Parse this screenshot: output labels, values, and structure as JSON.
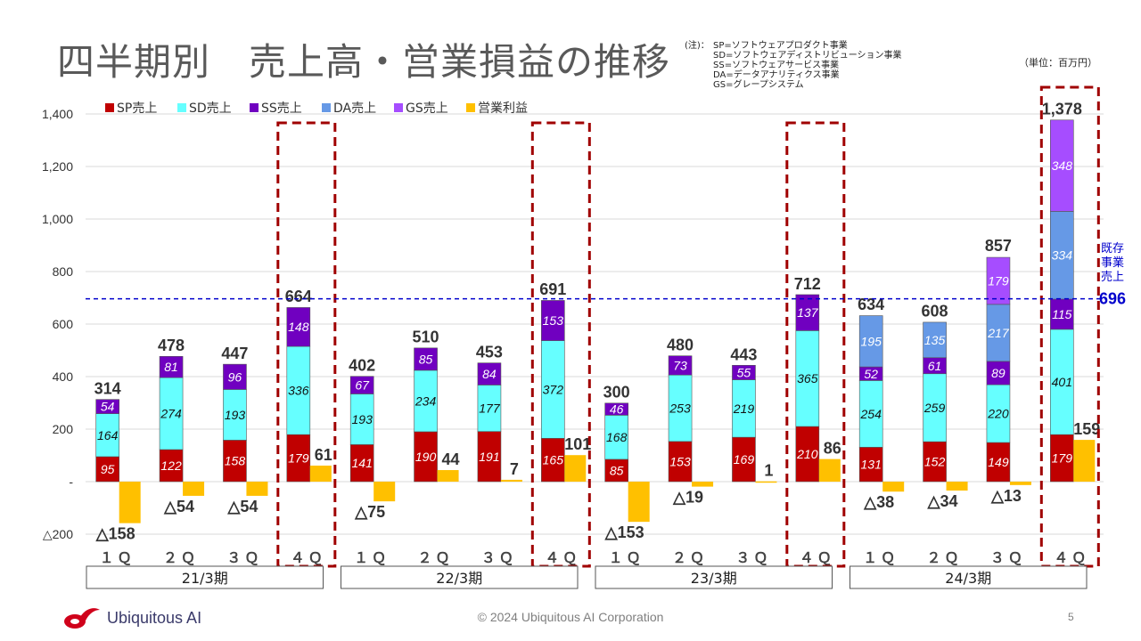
{
  "page": {
    "title": "四半期別　売上高・営業損益の推移",
    "notes_head": "(注)：",
    "notes": [
      "SP=ソフトウェアプロダクト事業",
      "SD=ソフトウェアディストリビューション事業",
      "SS=ソフトウェアサービス事業",
      "DA=データアナリティクス事業",
      "GS=グレープシステム"
    ],
    "unit": "（単位：百万円）",
    "company": "Ubiquitous AI",
    "copyright": "© 2024 Ubiquitous AI Corporation",
    "page_number": "5"
  },
  "chart_data": {
    "type": "bar",
    "stacked": true,
    "y_range": [
      -200,
      1400
    ],
    "y_ticks": [
      {
        "value": 1400,
        "label": "1,400"
      },
      {
        "value": 1200,
        "label": "1,200"
      },
      {
        "value": 1000,
        "label": "1,000"
      },
      {
        "value": 800,
        "label": "800"
      },
      {
        "value": 600,
        "label": "600"
      },
      {
        "value": 400,
        "label": "400"
      },
      {
        "value": 200,
        "label": "200"
      },
      {
        "value": 0,
        "label": "-"
      },
      {
        "value": -200,
        "label": "△200"
      }
    ],
    "grid": true,
    "legend_position": "top-left",
    "series": [
      {
        "key": "sp",
        "name": "SP売上",
        "color": "#c00000"
      },
      {
        "key": "sd",
        "name": "SD売上",
        "color": "#66ffff"
      },
      {
        "key": "ss",
        "name": "SS売上",
        "color": "#7000c0"
      },
      {
        "key": "da",
        "name": "DA売上",
        "color": "#6699e6"
      },
      {
        "key": "gs",
        "name": "GS売上",
        "color": "#a64dff"
      },
      {
        "key": "op",
        "name": "営業利益",
        "color": "#ffc000"
      }
    ],
    "fiscal_years": [
      "21/3期",
      "22/3期",
      "23/3期",
      "24/3期"
    ],
    "quarters": [
      {
        "label": "１Ｑ",
        "fy": 0,
        "sp": 95,
        "sd": 164,
        "ss": 54,
        "da": 0,
        "gs": 0,
        "total": 314,
        "total_label": "314",
        "op": -158,
        "op_label": "△158"
      },
      {
        "label": "２Ｑ",
        "fy": 0,
        "sp": 122,
        "sd": 274,
        "ss": 81,
        "da": 0,
        "gs": 0,
        "total": 478,
        "total_label": "478",
        "op": -54,
        "op_label": "△54"
      },
      {
        "label": "３Ｑ",
        "fy": 0,
        "sp": 158,
        "sd": 193,
        "ss": 96,
        "da": 0,
        "gs": 0,
        "total": 447,
        "total_label": "447",
        "op": -54,
        "op_label": "△54"
      },
      {
        "label": "４Ｑ",
        "fy": 0,
        "sp": 179,
        "sd": 336,
        "ss": 148,
        "da": 0,
        "gs": 0,
        "total": 664,
        "total_label": "664",
        "op": 61,
        "op_label": "61",
        "highlight": true
      },
      {
        "label": "１Ｑ",
        "fy": 1,
        "sp": 141,
        "sd": 193,
        "ss": 67,
        "da": 0,
        "gs": 0,
        "total": 402,
        "total_label": "402",
        "op": -75,
        "op_label": "△75"
      },
      {
        "label": "２Ｑ",
        "fy": 1,
        "sp": 190,
        "sd": 234,
        "ss": 85,
        "da": 0,
        "gs": 0,
        "total": 510,
        "total_label": "510",
        "op": 44,
        "op_label": "44"
      },
      {
        "label": "３Ｑ",
        "fy": 1,
        "sp": 191,
        "sd": 177,
        "ss": 84,
        "da": 0,
        "gs": 0,
        "total": 453,
        "total_label": "453",
        "op": 7,
        "op_label": "7"
      },
      {
        "label": "４Ｑ",
        "fy": 1,
        "sp": 165,
        "sd": 372,
        "ss": 153,
        "da": 0,
        "gs": 0,
        "total": 691,
        "total_label": "691",
        "op": 101,
        "op_label": "101",
        "highlight": true
      },
      {
        "label": "１Ｑ",
        "fy": 2,
        "sp": 85,
        "sd": 168,
        "ss": 46,
        "da": 0,
        "gs": 0,
        "total": 300,
        "total_label": "300",
        "op": -153,
        "op_label": "△153"
      },
      {
        "label": "２Ｑ",
        "fy": 2,
        "sp": 153,
        "sd": 253,
        "ss": 73,
        "da": 0,
        "gs": 0,
        "total": 480,
        "total_label": "480",
        "op": -19,
        "op_label": "△19"
      },
      {
        "label": "３Ｑ",
        "fy": 2,
        "sp": 169,
        "sd": 219,
        "ss": 55,
        "da": 0,
        "gs": 0,
        "total": 443,
        "total_label": "443",
        "op": 1,
        "op_label": "1"
      },
      {
        "label": "４Ｑ",
        "fy": 2,
        "sp": 210,
        "sd": 365,
        "ss": 137,
        "da": 0,
        "gs": 0,
        "total": 712,
        "total_label": "712",
        "op": 86,
        "op_label": "86",
        "highlight": true
      },
      {
        "label": "１Ｑ",
        "fy": 3,
        "sp": 131,
        "sd": 254,
        "ss": 52,
        "da": 195,
        "gs": 0,
        "total": 634,
        "total_label": "634",
        "op": -38,
        "op_label": "△38"
      },
      {
        "label": "２Ｑ",
        "fy": 3,
        "sp": 152,
        "sd": 259,
        "ss": 61,
        "da": 135,
        "gs": 0,
        "total": 608,
        "total_label": "608",
        "op": -34,
        "op_label": "△34"
      },
      {
        "label": "３Ｑ",
        "fy": 3,
        "sp": 149,
        "sd": 220,
        "ss": 89,
        "da": 217,
        "gs": 179,
        "total": 857,
        "total_label": "857",
        "op": -13,
        "op_label": "△13"
      },
      {
        "label": "４Ｑ",
        "fy": 3,
        "sp": 179,
        "sd": 401,
        "ss": 115,
        "da": 334,
        "gs": 348,
        "total": 1378,
        "total_label": "1,378",
        "op": 159,
        "op_label": "159",
        "highlight": true
      }
    ],
    "reference_line": {
      "value": 696,
      "label": "既存事業売上",
      "value_label": "696",
      "color": "#0000cc"
    }
  }
}
